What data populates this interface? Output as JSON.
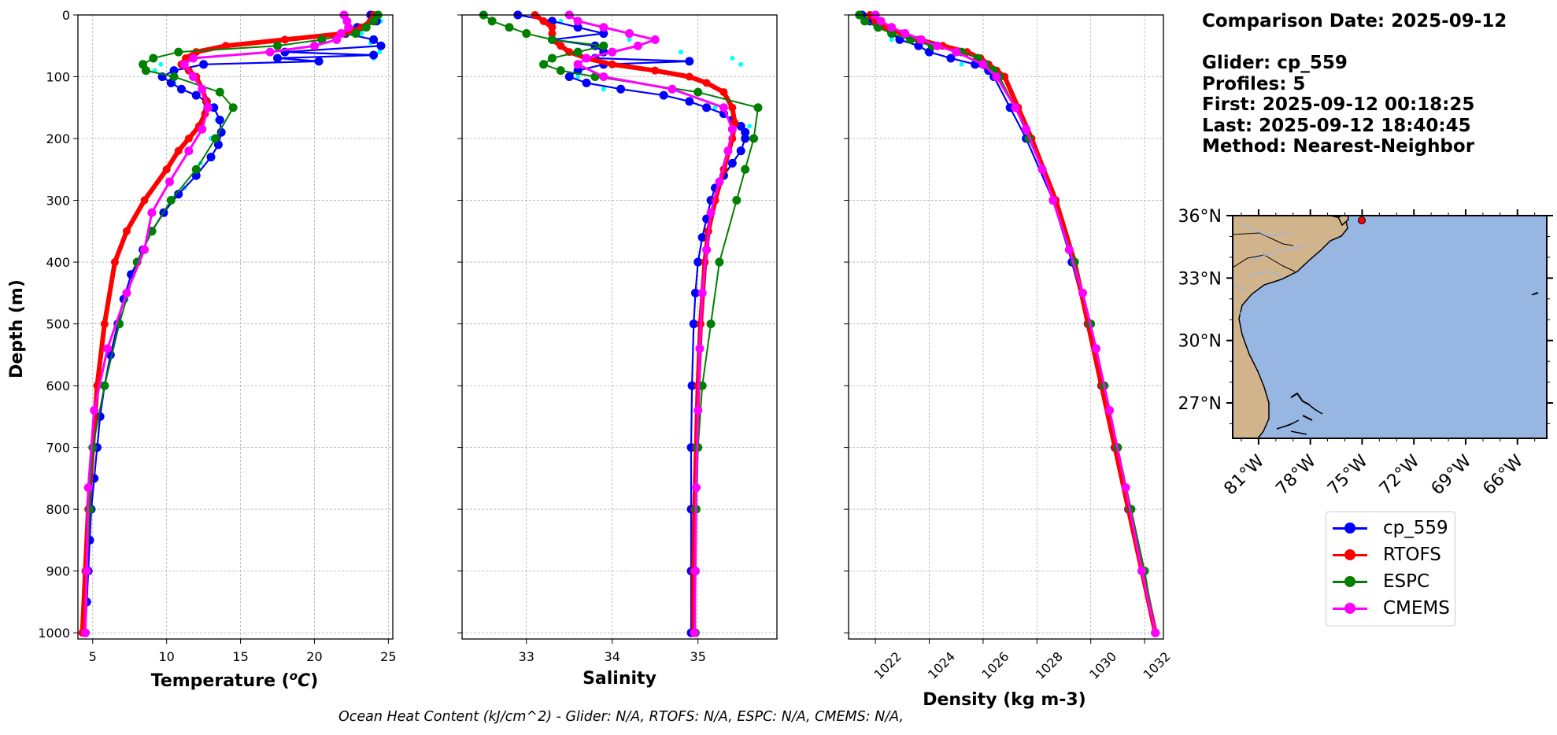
{
  "chart_data": [
    {
      "type": "line",
      "panel": "temperature",
      "xlabel": "Temperature (°C)",
      "ylabel": "Depth (m)",
      "xlim": [
        4,
        25.3
      ],
      "ylim": [
        1010,
        0
      ],
      "xticks": [
        5,
        10,
        15,
        20,
        25
      ],
      "yticks": [
        0,
        100,
        200,
        300,
        400,
        500,
        600,
        700,
        800,
        900,
        1000
      ],
      "grid": true,
      "series": [
        {
          "name": "cp_559 (individual profiles)",
          "color": "#00ffff",
          "style": "dots",
          "depth": [
            10,
            30,
            45,
            60,
            70,
            80,
            90,
            110,
            140,
            170,
            200,
            240,
            280,
            320,
            360,
            400
          ],
          "values": [
            24.5,
            23.2,
            23.8,
            24.4,
            24.0,
            9.6,
            9.2,
            10.5,
            12.8,
            13.4,
            13.0,
            12.3,
            11.2,
            9.7,
            8.7,
            8.0
          ]
        },
        {
          "name": "cp_559",
          "color": "#0000ff",
          "depth": [
            0,
            10,
            20,
            30,
            40,
            50,
            60,
            65,
            70,
            75,
            80,
            90,
            100,
            110,
            120,
            130,
            140,
            150,
            170,
            190,
            210,
            230,
            260,
            290,
            320,
            350,
            380,
            420,
            460,
            500,
            550,
            600,
            650,
            700,
            750,
            800,
            850,
            900,
            950,
            1000
          ],
          "values": [
            23.8,
            24.2,
            22.9,
            22.1,
            24.0,
            24.5,
            18.0,
            24.0,
            17.5,
            20.3,
            12.5,
            10.5,
            9.7,
            10.3,
            11.0,
            12.0,
            12.7,
            13.2,
            13.6,
            13.7,
            13.5,
            13.0,
            12.0,
            10.8,
            9.8,
            9.0,
            8.4,
            7.6,
            7.1,
            6.7,
            6.2,
            5.8,
            5.5,
            5.3,
            5.1,
            4.9,
            4.8,
            4.7,
            4.6,
            4.5
          ]
        },
        {
          "name": "RTOFS",
          "color": "#ff0000",
          "depth": [
            0,
            10,
            20,
            30,
            40,
            50,
            60,
            70,
            80,
            90,
            100,
            120,
            140,
            160,
            180,
            200,
            220,
            250,
            300,
            350,
            400,
            500,
            600,
            700,
            800,
            900,
            1000
          ],
          "values": [
            24.0,
            23.8,
            23.2,
            22.0,
            18.0,
            14.0,
            12.0,
            11.3,
            11.0,
            11.5,
            12.0,
            12.4,
            12.7,
            12.6,
            12.2,
            11.5,
            10.8,
            10.0,
            8.5,
            7.3,
            6.5,
            5.8,
            5.3,
            5.0,
            4.7,
            4.5,
            4.3
          ]
        },
        {
          "name": "ESPC",
          "color": "#008000",
          "depth": [
            0,
            10,
            20,
            30,
            40,
            50,
            60,
            70,
            80,
            90,
            100,
            125,
            150,
            200,
            250,
            300,
            350,
            400,
            500,
            600,
            700,
            800,
            900,
            1000
          ],
          "values": [
            24.3,
            24.0,
            23.5,
            22.8,
            20.5,
            17.5,
            10.8,
            9.1,
            8.4,
            8.6,
            10.5,
            13.6,
            14.5,
            13.3,
            12.0,
            10.3,
            9.0,
            8.0,
            6.8,
            5.8,
            5.0,
            4.8,
            4.6,
            4.5
          ]
        },
        {
          "name": "CMEMS",
          "color": "#ff00ff",
          "depth": [
            0,
            10,
            20,
            30,
            40,
            50,
            60,
            70,
            80,
            100,
            120,
            150,
            185,
            220,
            270,
            320,
            380,
            450,
            540,
            640,
            765,
            900,
            1000
          ],
          "values": [
            22.0,
            22.2,
            22.3,
            21.8,
            21.5,
            20.0,
            17.0,
            11.8,
            11.2,
            11.8,
            12.4,
            12.8,
            12.4,
            11.5,
            10.2,
            9.0,
            8.5,
            7.3,
            6.0,
            5.1,
            4.7,
            4.6,
            4.5
          ]
        }
      ]
    },
    {
      "type": "line",
      "panel": "salinity",
      "xlabel": "Salinity",
      "xlim": [
        32.25,
        35.92
      ],
      "ylim": [
        1010,
        0
      ],
      "xticks": [
        33,
        34,
        35
      ],
      "grid": true,
      "series": [
        {
          "name": "cp_559 (individual profiles)",
          "color": "#00ffff",
          "style": "dots",
          "depth": [
            10,
            40,
            60,
            70,
            80,
            100,
            120,
            150,
            180,
            220,
            260,
            300
          ],
          "values": [
            33.4,
            34.2,
            34.8,
            35.4,
            35.5,
            33.6,
            33.9,
            35.2,
            35.6,
            35.5,
            35.3,
            35.2
          ]
        },
        {
          "name": "cp_559",
          "color": "#0000ff",
          "depth": [
            0,
            10,
            20,
            30,
            40,
            50,
            60,
            70,
            75,
            80,
            90,
            100,
            110,
            120,
            130,
            140,
            150,
            160,
            170,
            180,
            190,
            200,
            220,
            240,
            260,
            280,
            300,
            330,
            360,
            400,
            450,
            500,
            600,
            700,
            800,
            900,
            1000
          ],
          "values": [
            32.9,
            33.3,
            33.6,
            33.9,
            33.3,
            33.8,
            33.9,
            33.8,
            34.9,
            33.9,
            33.6,
            33.5,
            33.7,
            34.1,
            34.6,
            34.9,
            35.1,
            35.3,
            35.4,
            35.5,
            35.55,
            35.55,
            35.5,
            35.4,
            35.3,
            35.2,
            35.15,
            35.1,
            35.05,
            35.0,
            34.97,
            34.95,
            34.93,
            34.92,
            34.92,
            34.92,
            34.92
          ]
        },
        {
          "name": "RTOFS",
          "color": "#ff0000",
          "depth": [
            0,
            10,
            20,
            30,
            40,
            50,
            60,
            70,
            80,
            90,
            100,
            110,
            125,
            150,
            175,
            200,
            250,
            300,
            350,
            400,
            500,
            600,
            700,
            800,
            900,
            1000
          ],
          "values": [
            33.1,
            33.2,
            33.3,
            33.3,
            33.3,
            33.4,
            33.5,
            33.7,
            34.0,
            34.5,
            34.9,
            35.1,
            35.3,
            35.4,
            35.43,
            35.4,
            35.3,
            35.2,
            35.12,
            35.08,
            35.03,
            35.0,
            34.98,
            34.96,
            34.95,
            34.95
          ]
        },
        {
          "name": "ESPC",
          "color": "#008000",
          "depth": [
            0,
            10,
            20,
            30,
            40,
            50,
            60,
            70,
            80,
            90,
            100,
            125,
            150,
            200,
            250,
            300,
            400,
            500,
            600,
            700,
            800,
            900,
            1000
          ],
          "values": [
            32.5,
            32.6,
            32.8,
            33.0,
            33.3,
            33.9,
            33.6,
            33.3,
            33.2,
            33.4,
            33.8,
            35.0,
            35.7,
            35.65,
            35.55,
            35.45,
            35.25,
            35.15,
            35.05,
            35.0,
            34.98,
            34.97,
            34.97
          ]
        },
        {
          "name": "CMEMS",
          "color": "#ff00ff",
          "depth": [
            0,
            10,
            20,
            30,
            40,
            50,
            60,
            70,
            80,
            100,
            120,
            150,
            185,
            220,
            270,
            320,
            380,
            450,
            540,
            640,
            765,
            900,
            1000
          ],
          "values": [
            33.5,
            33.6,
            33.9,
            34.2,
            34.5,
            34.3,
            34.0,
            33.7,
            33.6,
            33.9,
            34.7,
            35.3,
            35.4,
            35.35,
            35.25,
            35.15,
            35.1,
            35.05,
            35.02,
            35.0,
            34.98,
            34.97,
            34.96
          ]
        }
      ]
    },
    {
      "type": "line",
      "panel": "density",
      "xlabel": "Density (kg m-3)",
      "xlim": [
        1021.0,
        1032.7
      ],
      "ylim": [
        1010,
        0
      ],
      "xticks": [
        1022,
        1024,
        1026,
        1028,
        1030,
        1032
      ],
      "grid": true,
      "series": [
        {
          "name": "cp_559 (individual profiles)",
          "color": "#00ffff",
          "style": "dots",
          "depth": [
            20,
            40,
            60,
            80
          ],
          "values": [
            1022.0,
            1022.6,
            1023.9,
            1025.2
          ]
        },
        {
          "name": "cp_559",
          "color": "#0000ff",
          "depth": [
            0,
            10,
            20,
            30,
            40,
            50,
            60,
            70,
            80,
            90,
            100,
            150,
            200,
            300,
            400,
            500,
            600,
            700,
            800,
            900,
            1000
          ],
          "values": [
            1021.5,
            1021.8,
            1022.1,
            1022.6,
            1022.9,
            1023.6,
            1024.0,
            1024.8,
            1025.7,
            1026.2,
            1026.4,
            1027.0,
            1027.6,
            1028.6,
            1029.3,
            1029.9,
            1030.4,
            1030.9,
            1031.4,
            1031.9,
            1032.4
          ]
        },
        {
          "name": "RTOFS",
          "color": "#ff0000",
          "depth": [
            0,
            10,
            20,
            30,
            40,
            50,
            60,
            70,
            80,
            90,
            100,
            150,
            200,
            300,
            400,
            500,
            600,
            700,
            800,
            900,
            1000
          ],
          "values": [
            1021.8,
            1022.0,
            1022.4,
            1023.0,
            1023.6,
            1024.5,
            1025.4,
            1025.9,
            1026.2,
            1026.5,
            1026.8,
            1027.3,
            1027.8,
            1028.7,
            1029.4,
            1029.9,
            1030.4,
            1030.9,
            1031.4,
            1031.9,
            1032.4
          ]
        },
        {
          "name": "ESPC",
          "color": "#008000",
          "depth": [
            0,
            10,
            20,
            30,
            40,
            50,
            60,
            70,
            80,
            90,
            100,
            150,
            200,
            250,
            300,
            400,
            500,
            600,
            700,
            800,
            900,
            1000
          ],
          "values": [
            1021.4,
            1021.6,
            1022.1,
            1022.6,
            1023.3,
            1024.1,
            1025.2,
            1025.8,
            1026.1,
            1026.4,
            1026.6,
            1027.2,
            1027.7,
            1028.2,
            1028.6,
            1029.4,
            1030.0,
            1030.5,
            1031.0,
            1031.5,
            1032.0,
            1032.4
          ]
        },
        {
          "name": "CMEMS",
          "color": "#ff00ff",
          "depth": [
            0,
            10,
            20,
            30,
            40,
            50,
            60,
            80,
            100,
            150,
            185,
            250,
            300,
            380,
            450,
            540,
            640,
            765,
            900,
            1000
          ],
          "values": [
            1022.0,
            1022.2,
            1022.6,
            1023.1,
            1023.7,
            1024.3,
            1025.0,
            1026.0,
            1026.5,
            1027.2,
            1027.6,
            1028.2,
            1028.6,
            1029.2,
            1029.7,
            1030.2,
            1030.7,
            1031.3,
            1031.9,
            1032.4
          ]
        }
      ]
    }
  ],
  "map": {
    "lat_ticks": [
      "36°N",
      "33°N",
      "30°N",
      "27°N"
    ],
    "lon_ticks": [
      "81°W",
      "78°W",
      "75°W",
      "72°W",
      "69°W",
      "66°W"
    ],
    "lat_range": [
      25.3,
      36.0
    ],
    "lon_range": [
      -82.5,
      -64.3
    ],
    "glider_position": {
      "lon": -75.1,
      "lat": 35.9
    },
    "land_color": "#d2b48c",
    "ocean_color": "#97b6e1"
  },
  "info": {
    "comparison_date": "Comparison Date: 2025-09-12",
    "glider": "Glider: cp_559",
    "profiles": "Profiles: 5",
    "first": "First: 2025-09-12 00:18:25",
    "last": "Last: 2025-09-12 18:40:45",
    "method": "Method: Nearest-Neighbor"
  },
  "legend": [
    {
      "label": "cp_559",
      "color": "#0000ff"
    },
    {
      "label": "RTOFS",
      "color": "#ff0000"
    },
    {
      "label": "ESPC",
      "color": "#008000"
    },
    {
      "label": "CMEMS",
      "color": "#ff00ff"
    }
  ],
  "footer": "Ocean Heat Content (kJ/cm^2) - Glider: N/A,  RTOFS: N/A,  ESPC: N/A,  CMEMS: N/A,"
}
